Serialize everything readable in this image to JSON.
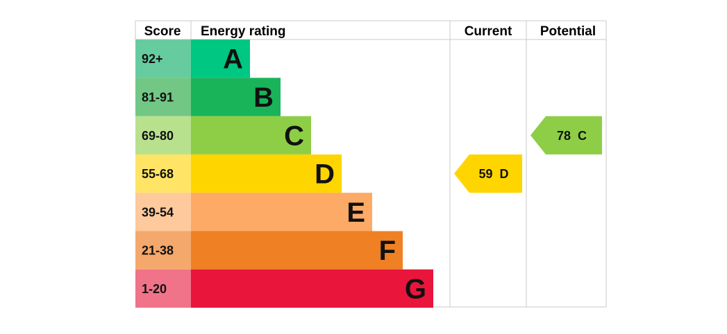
{
  "headers": {
    "score": "Score",
    "energy_rating": "Energy rating",
    "current": "Current",
    "potential": "Potential"
  },
  "chart_data": {
    "type": "bar",
    "title": "",
    "categories": [
      "A",
      "B",
      "C",
      "D",
      "E",
      "F",
      "G"
    ],
    "score_ranges": [
      "92+",
      "81-91",
      "69-80",
      "55-68",
      "39-54",
      "21-38",
      "1-20"
    ],
    "band_colors": [
      "#00c781",
      "#19b459",
      "#8dce46",
      "#ffd500",
      "#fcaa65",
      "#ef8023",
      "#e9153b"
    ],
    "score_colors": [
      "#66cc9f",
      "#72c785",
      "#b8e18e",
      "#ffe466",
      "#fdc99d",
      "#f5a86b",
      "#f17389"
    ],
    "current": {
      "value": 59,
      "band": "D",
      "label": "59  D",
      "color": "#ffd500"
    },
    "potential": {
      "value": 78,
      "band": "C",
      "label": "78  C",
      "color": "#8dce46"
    }
  }
}
